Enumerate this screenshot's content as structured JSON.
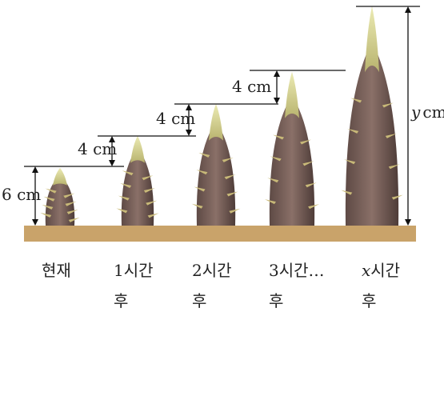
{
  "annotations": [
    "6 cm",
    "4 cm",
    "4 cm",
    "4 cm"
  ],
  "height_label": {
    "variable": "y",
    "unit": "cm"
  },
  "stages": [
    {
      "line1": "현재"
    },
    {
      "line1": "1시간",
      "line2": "후"
    },
    {
      "line1": "2시간",
      "line2": "후"
    },
    {
      "line1": "3시간…",
      "line2": "후"
    },
    {
      "variable": "x",
      "line1": "시간",
      "line2": "후"
    }
  ]
}
